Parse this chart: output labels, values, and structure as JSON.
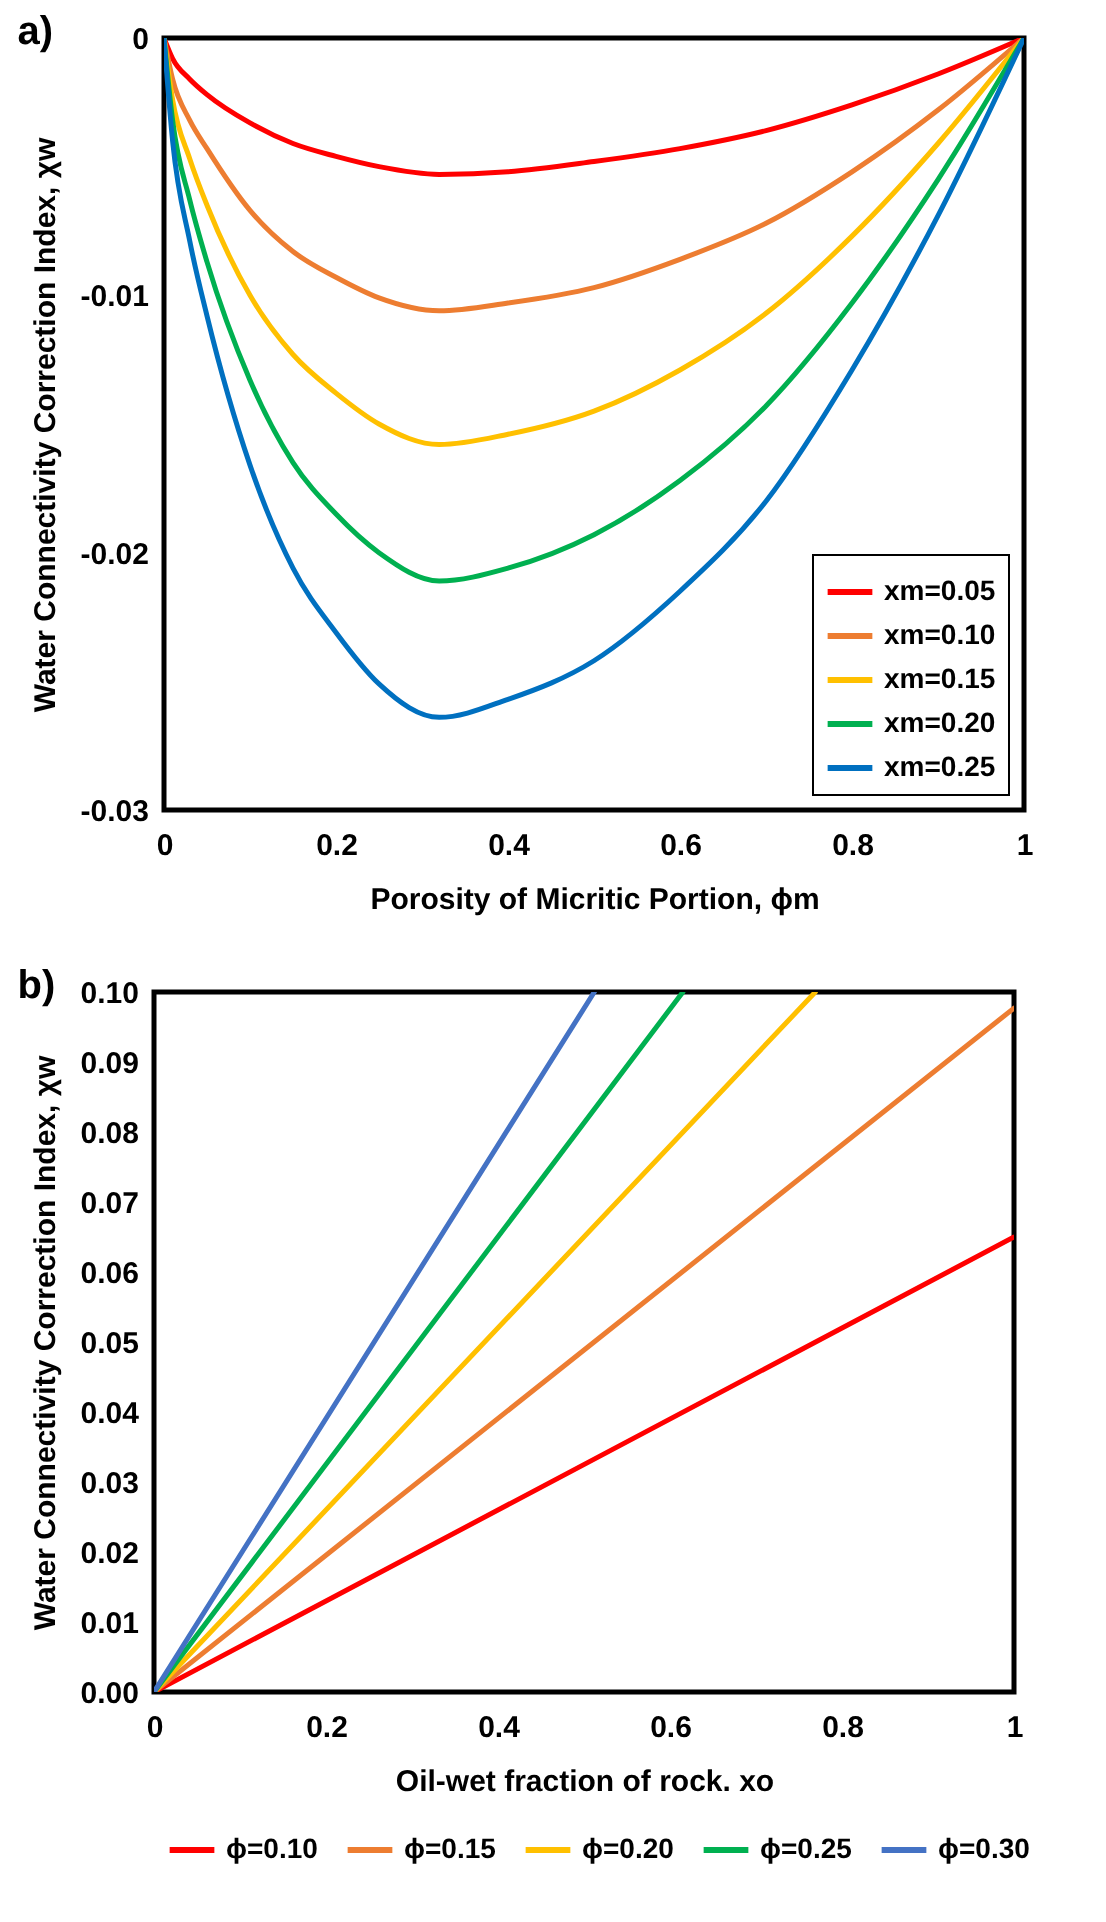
{
  "chart_data": [
    {
      "type": "line",
      "annotations": [
        "a)"
      ],
      "xlabel": "Porosity of Micritic Portion, ϕm",
      "ylabel": "Water Connectivity Correction Index, χw",
      "x": [
        0,
        0.01,
        0.03,
        0.05,
        0.1,
        0.15,
        0.2,
        0.25,
        0.32,
        0.4,
        0.5,
        0.6,
        0.7,
        0.8,
        0.9,
        1
      ],
      "series": [
        {
          "name": "xm=0.05",
          "color": "#ff0000",
          "values": [
            0,
            -0.0008,
            -0.0016,
            -0.0022,
            -0.0033,
            -0.0041,
            -0.0046,
            -0.005,
            -0.0053,
            -0.0052,
            -0.0048,
            -0.0043,
            -0.0036,
            -0.0026,
            -0.0014,
            0
          ]
        },
        {
          "name": "xm=0.10",
          "color": "#ed7d31",
          "values": [
            0,
            -0.0016,
            -0.0032,
            -0.0043,
            -0.0067,
            -0.0083,
            -0.0093,
            -0.0101,
            -0.0106,
            -0.0103,
            -0.0097,
            -0.0086,
            -0.0072,
            -0.0052,
            -0.0028,
            0
          ]
        },
        {
          "name": "xm=0.15",
          "color": "#ffc000",
          "values": [
            0,
            -0.0024,
            -0.0047,
            -0.0065,
            -0.01,
            -0.0123,
            -0.0138,
            -0.015,
            -0.0158,
            -0.0154,
            -0.0145,
            -0.0129,
            -0.0107,
            -0.0077,
            -0.0041,
            0
          ]
        },
        {
          "name": "xm=0.20",
          "color": "#00b050",
          "values": [
            0,
            -0.0032,
            -0.0063,
            -0.0087,
            -0.0133,
            -0.0165,
            -0.0185,
            -0.02,
            -0.0211,
            -0.0206,
            -0.0193,
            -0.0172,
            -0.0143,
            -0.0103,
            -0.0055,
            0
          ]
        },
        {
          "name": "xm=0.25",
          "color": "#0070c0",
          "values": [
            0,
            -0.004,
            -0.0079,
            -0.0108,
            -0.0166,
            -0.0206,
            -0.0231,
            -0.0251,
            -0.0264,
            -0.0257,
            -0.0242,
            -0.0215,
            -0.018,
            -0.0129,
            -0.0069,
            0
          ]
        }
      ],
      "xlim": [
        0,
        1
      ],
      "xticks": [
        0,
        0.2,
        0.4,
        0.6,
        0.8,
        1
      ],
      "ylim": [
        -0.03,
        0
      ],
      "yticks": [
        -0.03,
        -0.02,
        -0.01,
        0
      ],
      "grid": false,
      "legend": "bottom right",
      "line_style": "solid"
    },
    {
      "type": "line",
      "annotations": [
        "b)"
      ],
      "xlabel": "Oil-wet fraction of rock. xo",
      "ylabel": "Water Connectivity Correction Index, χw",
      "series": [
        {
          "name": "ϕ=0.10",
          "color": "#ff0000",
          "x": [
            0,
            1
          ],
          "values": [
            0,
            0.065
          ]
        },
        {
          "name": "ϕ=0.15",
          "color": "#ed7d31",
          "x": [
            0,
            1
          ],
          "values": [
            0,
            0.0977
          ]
        },
        {
          "name": "ϕ=0.20",
          "color": "#ffc000",
          "x": [
            0,
            0.769
          ],
          "values": [
            0,
            0.1
          ]
        },
        {
          "name": "ϕ=0.25",
          "color": "#00b050",
          "x": [
            0,
            0.615
          ],
          "values": [
            0,
            0.1
          ]
        },
        {
          "name": "ϕ=0.30",
          "color": "#4472c4",
          "x": [
            0,
            0.512
          ],
          "values": [
            0,
            0.1
          ]
        }
      ],
      "xlim": [
        0,
        1
      ],
      "xticks": [
        0,
        0.2,
        0.4,
        0.6,
        0.8,
        1
      ],
      "ylim": [
        0,
        0.1
      ],
      "yticks": [
        {
          "value": 0,
          "label": "0.00"
        },
        {
          "value": 0.01,
          "label": "0.01"
        },
        {
          "value": 0.02,
          "label": "0.02"
        },
        {
          "value": 0.03,
          "label": "0.03"
        },
        {
          "value": 0.04,
          "label": "0.04"
        },
        {
          "value": 0.05,
          "label": "0.05"
        },
        {
          "value": 0.06,
          "label": "0.06"
        },
        {
          "value": 0.07,
          "label": "0.07"
        },
        {
          "value": 0.08,
          "label": "0.08"
        },
        {
          "value": 0.09,
          "label": "0.09"
        },
        {
          "value": 0.1,
          "label": "0.10"
        }
      ],
      "grid": false,
      "legend": "bottom",
      "line_style": "solid"
    }
  ]
}
